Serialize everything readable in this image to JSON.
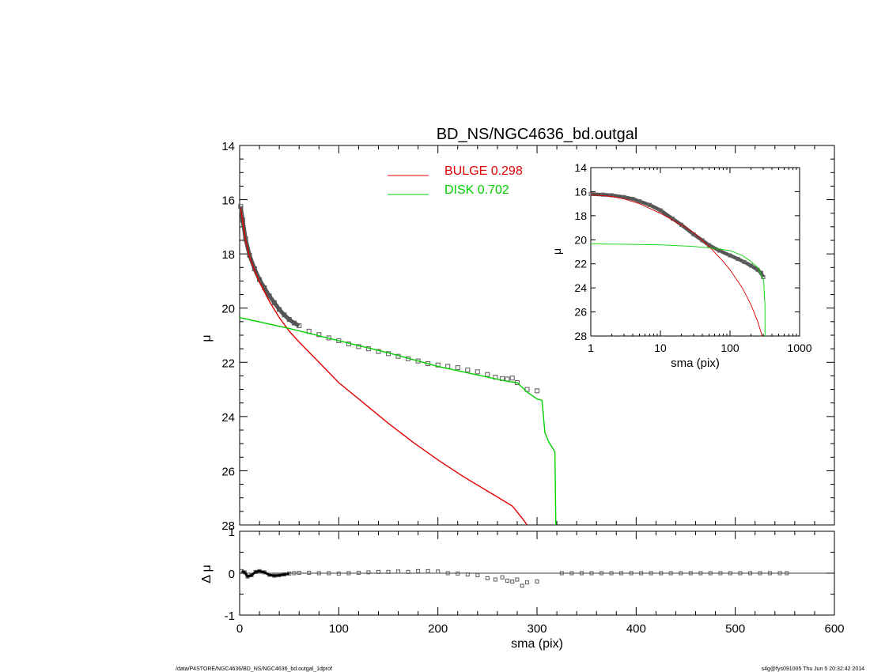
{
  "title": "BD_NS/NGC4636_bd.outgal",
  "footer": {
    "left": "/data/P4STORE/NGC4636/BD_NS/NGC4636_bd.outgal_1dprof",
    "right": "s4g@fys091005  Thu Jun  5 20:32:42 2014"
  },
  "colors": {
    "bulge": "#e00000",
    "disk": "#00d000",
    "data": "#666666",
    "axis": "#000000"
  },
  "chart_data": [
    {
      "type": "line",
      "panel": "main",
      "xlabel": "sma (pix)",
      "ylabel": "μ",
      "xlim": [
        0,
        600
      ],
      "ylim": [
        28,
        14
      ],
      "x_ticks": [
        0,
        100,
        200,
        300,
        400,
        500,
        600
      ],
      "y_ticks": [
        14,
        16,
        18,
        20,
        22,
        24,
        26,
        28
      ],
      "legend": [
        {
          "label": "BULGE  0.298",
          "color": "#e00000"
        },
        {
          "label": "DISK  0.702",
          "color": "#00d000"
        }
      ],
      "series": [
        {
          "name": "BULGE",
          "color": "#e00000",
          "x": [
            1,
            3,
            6,
            10,
            15,
            20,
            30,
            40,
            50,
            60,
            80,
            100,
            125,
            150,
            175,
            200,
            225,
            250,
            275,
            285,
            290
          ],
          "y": [
            16.3,
            16.8,
            17.5,
            18.1,
            18.6,
            19.05,
            19.75,
            20.35,
            20.85,
            21.25,
            22.0,
            22.75,
            23.5,
            24.25,
            24.95,
            25.6,
            26.2,
            26.75,
            27.3,
            27.75,
            28.0
          ]
        },
        {
          "name": "DISK",
          "color": "#00d000",
          "x": [
            0,
            50,
            100,
            150,
            200,
            250,
            270,
            280,
            290,
            300,
            305,
            308,
            312,
            318,
            319
          ],
          "y": [
            20.35,
            20.75,
            21.2,
            21.65,
            22.15,
            22.55,
            22.7,
            22.75,
            23.1,
            23.35,
            23.4,
            24.6,
            24.95,
            25.3,
            28.0
          ]
        },
        {
          "name": "data",
          "color": "#666666",
          "marker": "square",
          "x": [
            1,
            3,
            6,
            10,
            15,
            20,
            25,
            30,
            35,
            40,
            45,
            50,
            55,
            60,
            70,
            80,
            90,
            100,
            110,
            120,
            130,
            140,
            150,
            160,
            170,
            180,
            190,
            200,
            210,
            220,
            230,
            240,
            250,
            258,
            265,
            270,
            275,
            280,
            290,
            300
          ],
          "y": [
            16.25,
            16.75,
            17.45,
            18.05,
            18.55,
            18.95,
            19.25,
            19.55,
            19.8,
            20.05,
            20.25,
            20.42,
            20.55,
            20.65,
            20.85,
            20.98,
            21.1,
            21.2,
            21.32,
            21.42,
            21.5,
            21.6,
            21.68,
            21.78,
            21.87,
            21.95,
            22.05,
            22.1,
            22.15,
            22.2,
            22.28,
            22.35,
            22.45,
            22.55,
            22.6,
            22.62,
            22.58,
            22.75,
            23.0,
            23.05
          ]
        }
      ]
    },
    {
      "type": "scatter",
      "panel": "residual",
      "xlabel": "sma (pix)",
      "ylabel": "Δ μ",
      "xlim": [
        0,
        600
      ],
      "ylim": [
        -1,
        1
      ],
      "y_ticks": [
        -1,
        0,
        1
      ],
      "series": [
        {
          "name": "residual",
          "color": "#666666",
          "marker": "square",
          "x": [
            2,
            5,
            8,
            12,
            16,
            20,
            25,
            30,
            35,
            40,
            45,
            50,
            55,
            60,
            70,
            80,
            90,
            100,
            110,
            120,
            130,
            140,
            150,
            160,
            170,
            180,
            190,
            200,
            210,
            220,
            230,
            240,
            250,
            258,
            265,
            270,
            275,
            280,
            285,
            290,
            300,
            325,
            335,
            345,
            355,
            365,
            375,
            385,
            395,
            405,
            415,
            425,
            435,
            445,
            455,
            465,
            475,
            485,
            495,
            505,
            515,
            525,
            535,
            545,
            552
          ],
          "y": [
            0.05,
            0.02,
            -0.08,
            -0.05,
            0.03,
            0.05,
            0.02,
            -0.04,
            -0.06,
            -0.05,
            -0.03,
            -0.01,
            0.0,
            0.01,
            0.01,
            0.0,
            0.0,
            -0.01,
            0.0,
            0.01,
            0.02,
            0.03,
            0.03,
            0.04,
            0.03,
            0.05,
            0.05,
            0.04,
            0.0,
            -0.01,
            -0.03,
            -0.05,
            -0.12,
            -0.15,
            -0.1,
            -0.18,
            -0.2,
            -0.15,
            -0.3,
            -0.22,
            -0.2,
            0.0,
            0.0,
            0.0,
            0.0,
            0.0,
            0.0,
            0.0,
            0.0,
            0.0,
            0.0,
            0.0,
            0.0,
            0.0,
            0.0,
            0.0,
            0.0,
            0.0,
            0.0,
            0.0,
            0.0,
            0.0,
            0.0,
            0.0,
            0.0
          ]
        }
      ]
    },
    {
      "type": "line",
      "panel": "inset",
      "xlabel": "sma (pix)",
      "ylabel": "μ",
      "x_scale": "log",
      "xlim": [
        1,
        1000
      ],
      "ylim": [
        28,
        14
      ],
      "x_ticks": [
        1,
        10,
        100,
        1000
      ],
      "x_tick_labels": [
        "1",
        "10",
        "100",
        "1000"
      ],
      "y_ticks": [
        14,
        16,
        18,
        20,
        22,
        24,
        26,
        28
      ],
      "series": [
        {
          "name": "BULGE",
          "color": "#e00000",
          "x": [
            1,
            2,
            3,
            5,
            10,
            20,
            30,
            50,
            80,
            100,
            150,
            200,
            250,
            290
          ],
          "y": [
            16.25,
            16.4,
            16.6,
            17.0,
            17.8,
            18.75,
            19.4,
            20.55,
            21.8,
            22.5,
            24.0,
            25.4,
            26.8,
            28.0
          ]
        },
        {
          "name": "DISK",
          "color": "#00d000",
          "x": [
            1,
            3,
            10,
            30,
            60,
            100,
            150,
            200,
            250,
            300,
            305,
            312,
            318,
            319
          ],
          "y": [
            20.35,
            20.37,
            20.42,
            20.55,
            20.72,
            20.9,
            21.3,
            21.8,
            22.3,
            23.3,
            23.4,
            24.8,
            25.3,
            28.0
          ]
        },
        {
          "name": "data",
          "color": "#666666",
          "marker": "square",
          "x": [
            1,
            1.5,
            2,
            3,
            4,
            5,
            7,
            10,
            15,
            20,
            30,
            40,
            50,
            70,
            100,
            130,
            160,
            200,
            250,
            280,
            300
          ],
          "y": [
            16.2,
            16.25,
            16.3,
            16.45,
            16.6,
            16.8,
            17.1,
            17.55,
            18.25,
            18.75,
            19.55,
            20.05,
            20.45,
            20.9,
            21.3,
            21.6,
            21.85,
            22.15,
            22.5,
            22.75,
            23.1
          ]
        }
      ]
    }
  ]
}
